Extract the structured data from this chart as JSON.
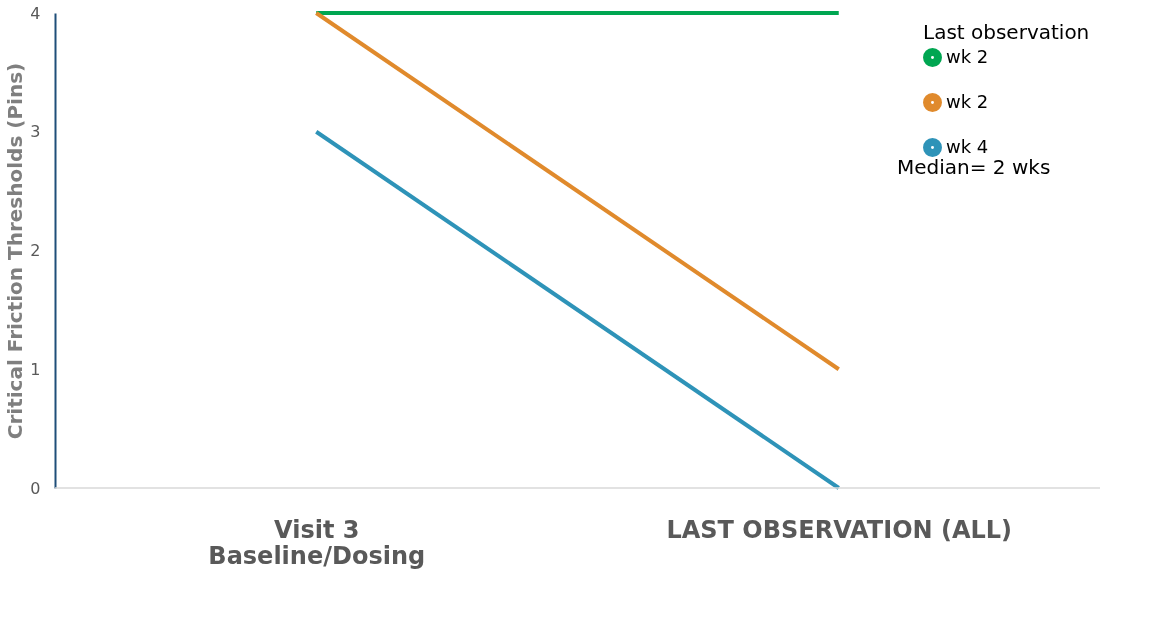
{
  "chart_data": {
    "type": "line",
    "ylabel": "Critical Friction Thresholds (Pins)",
    "legend_title": "Last observation",
    "categories": [
      "Visit 3\nBaseline/Dosing",
      "LAST OBSERVATION (ALL)"
    ],
    "series": [
      {
        "name": "wk 2",
        "color": "#00a651",
        "values": [
          4,
          4
        ]
      },
      {
        "name": "wk 2",
        "color": "#e08a2c",
        "values": [
          4,
          1
        ]
      },
      {
        "name": "wk 4",
        "color": "#2e93b8",
        "values": [
          3,
          0
        ]
      }
    ],
    "ylim": [
      0,
      4
    ],
    "yticks": [
      0,
      1,
      2,
      3,
      4
    ],
    "grid": false,
    "legend": "top right",
    "marker": "none",
    "line_style": "solid",
    "annotations": [
      "Median= 2 wks"
    ]
  }
}
